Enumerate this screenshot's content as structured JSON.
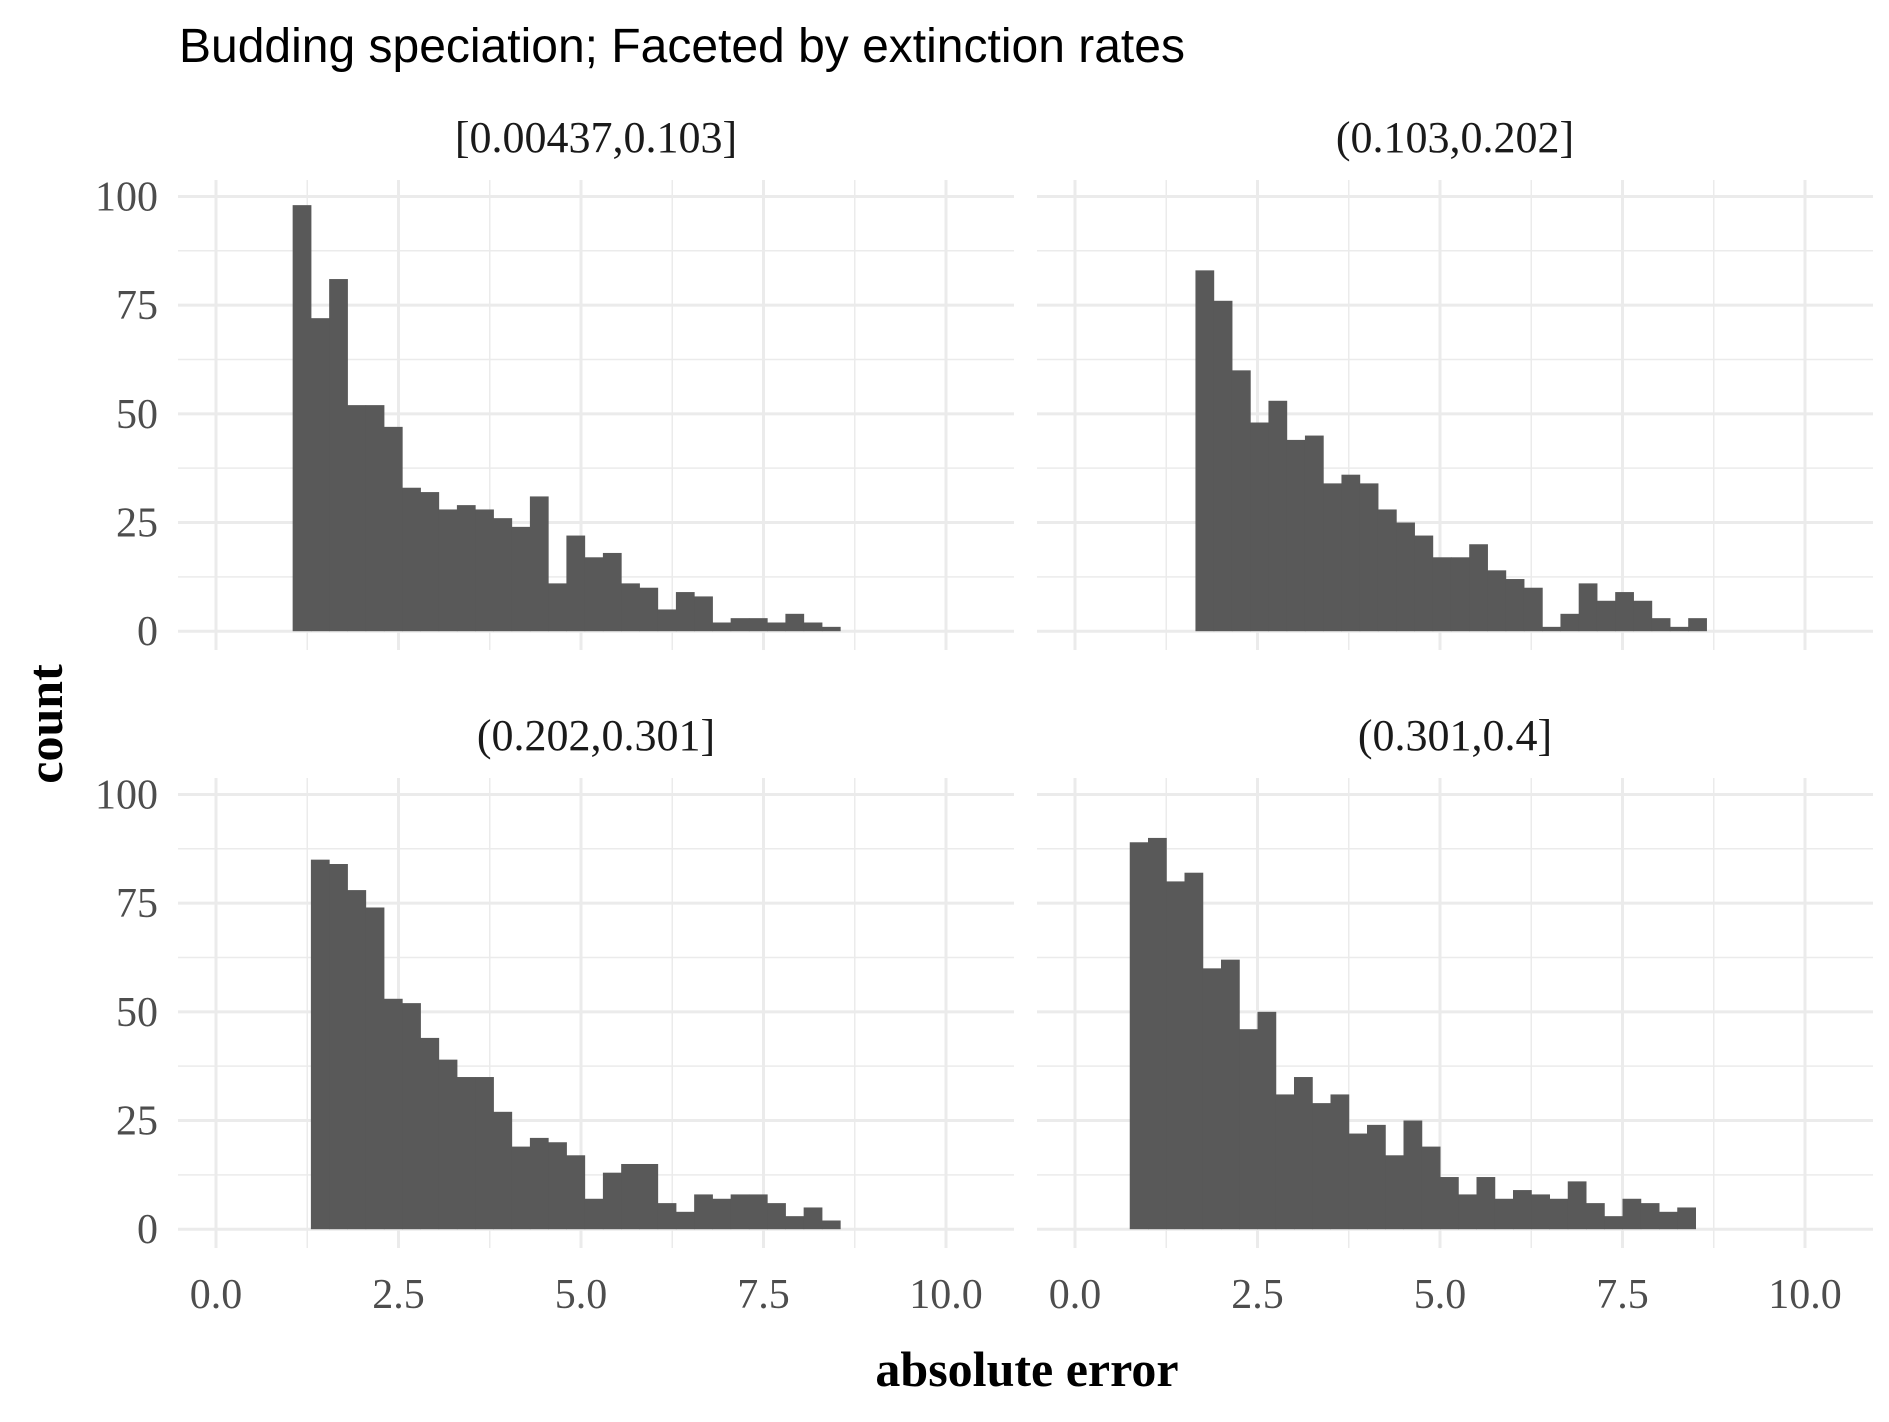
{
  "chart_data": {
    "type": "bar",
    "title": "Budding speciation; Faceted by extinction rates",
    "xlabel": "absolute error",
    "ylabel": "count",
    "xlim": [
      0,
      10
    ],
    "ylim": [
      0,
      100
    ],
    "x_ticks": [
      "0.0",
      "2.5",
      "5.0",
      "7.5",
      "10.0"
    ],
    "x_tick_values": [
      0,
      2.5,
      5,
      7.5,
      10
    ],
    "y_ticks": [
      "0",
      "25",
      "50",
      "75",
      "100"
    ],
    "y_tick_values": [
      0,
      25,
      50,
      75,
      100
    ],
    "bin_width": 0.25,
    "grid": true,
    "bar_color": "#595959",
    "grid_color": "#ebebeb",
    "facets": [
      {
        "label": "[0.00437,0.103]",
        "bin_start": 1.05,
        "values": [
          98,
          72,
          81,
          52,
          52,
          47,
          33,
          32,
          28,
          29,
          28,
          26,
          24,
          31,
          11,
          22,
          17,
          18,
          11,
          10,
          5,
          9,
          8,
          2,
          3,
          3,
          2,
          4,
          2,
          1
        ]
      },
      {
        "label": "(0.103,0.202]",
        "bin_start": 1.65,
        "values": [
          83,
          76,
          60,
          48,
          53,
          44,
          45,
          34,
          36,
          34,
          28,
          25,
          22,
          17,
          17,
          20,
          14,
          12,
          10,
          1,
          4,
          11,
          7,
          9,
          7,
          3,
          1,
          3
        ]
      },
      {
        "label": "(0.202,0.301]",
        "bin_start": 1.3,
        "values": [
          85,
          84,
          78,
          74,
          53,
          52,
          44,
          39,
          35,
          35,
          27,
          19,
          21,
          20,
          17,
          7,
          13,
          15,
          15,
          6,
          4,
          8,
          7,
          8,
          8,
          6,
          3,
          5,
          2
        ]
      },
      {
        "label": "(0.301,0.4]",
        "bin_start": 0.75,
        "values": [
          89,
          90,
          80,
          82,
          60,
          62,
          46,
          50,
          31,
          35,
          29,
          31,
          22,
          24,
          17,
          25,
          19,
          12,
          8,
          12,
          7,
          9,
          8,
          7,
          11,
          6,
          3,
          7,
          6,
          4,
          5
        ]
      }
    ]
  }
}
